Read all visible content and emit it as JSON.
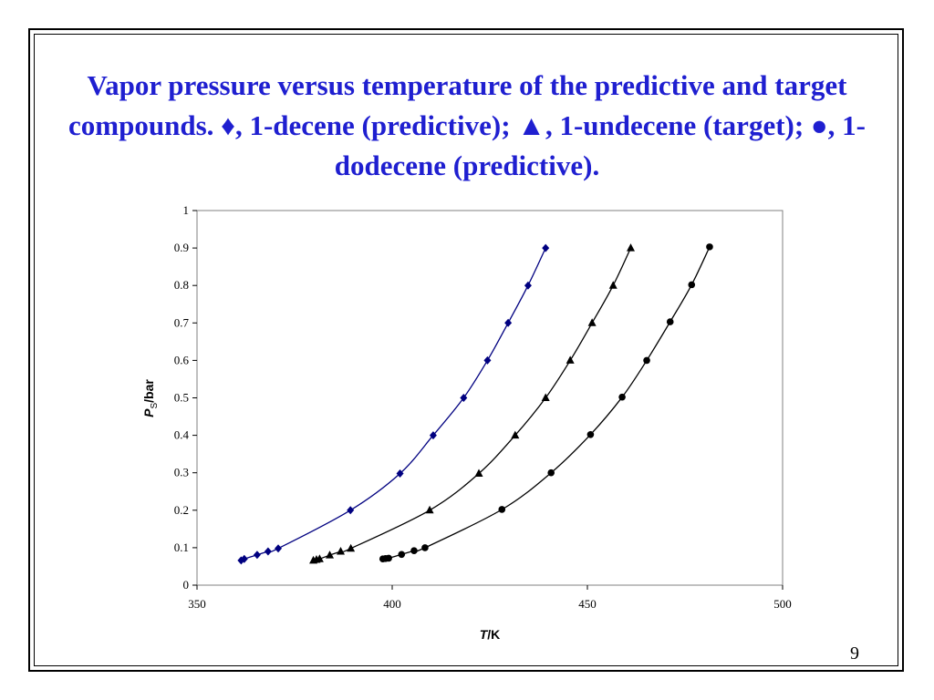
{
  "slide": {
    "title": "Vapor pressure versus temperature of the predictive and target compounds. ♦, 1-decene (predictive); ▲, 1-undecene (target); ●, 1-dodecene (predictive).",
    "page_number": "9"
  },
  "chart_data": {
    "type": "scatter",
    "title": "",
    "xlabel": {
      "italic": "T",
      "rest": "/K"
    },
    "ylabel": {
      "italic": "P",
      "sub": "S",
      "rest": "/bar"
    },
    "xlim": [
      350,
      500
    ],
    "ylim": [
      0,
      1
    ],
    "xticks": [
      350,
      400,
      450,
      500
    ],
    "yticks": [
      0,
      0.1,
      0.2,
      0.3,
      0.4,
      0.5,
      0.6,
      0.7,
      0.8,
      0.9,
      1
    ],
    "grid": false,
    "series": [
      {
        "marker": "diamond",
        "color": "#000080",
        "points": [
          [
            361.3,
            0.066
          ],
          [
            362.1,
            0.07
          ],
          [
            365.4,
            0.081
          ],
          [
            368.2,
            0.09
          ],
          [
            370.8,
            0.098
          ],
          [
            389.3,
            0.2
          ],
          [
            402.0,
            0.298
          ],
          [
            410.5,
            0.4
          ],
          [
            418.3,
            0.5
          ],
          [
            424.4,
            0.6
          ],
          [
            429.7,
            0.7
          ],
          [
            434.8,
            0.8
          ],
          [
            439.3,
            0.9
          ]
        ]
      },
      {
        "marker": "triangle",
        "color": "#000000",
        "points": [
          [
            379.8,
            0.066
          ],
          [
            380.6,
            0.068
          ],
          [
            381.4,
            0.07
          ],
          [
            384.0,
            0.08
          ],
          [
            386.8,
            0.09
          ],
          [
            389.4,
            0.098
          ],
          [
            409.6,
            0.2
          ],
          [
            422.2,
            0.298
          ],
          [
            431.5,
            0.4
          ],
          [
            439.3,
            0.5
          ],
          [
            445.6,
            0.6
          ],
          [
            451.2,
            0.7
          ],
          [
            456.6,
            0.8
          ],
          [
            461.1,
            0.9
          ]
        ]
      },
      {
        "marker": "circle",
        "color": "#000000",
        "points": [
          [
            397.6,
            0.07
          ],
          [
            398.3,
            0.071
          ],
          [
            399.1,
            0.072
          ],
          [
            402.4,
            0.082
          ],
          [
            405.6,
            0.092
          ],
          [
            408.4,
            0.1
          ],
          [
            428.1,
            0.202
          ],
          [
            440.7,
            0.3
          ],
          [
            450.8,
            0.402
          ],
          [
            458.9,
            0.502
          ],
          [
            465.2,
            0.6
          ],
          [
            471.2,
            0.703
          ],
          [
            476.7,
            0.802
          ],
          [
            481.3,
            0.903
          ]
        ]
      }
    ]
  }
}
